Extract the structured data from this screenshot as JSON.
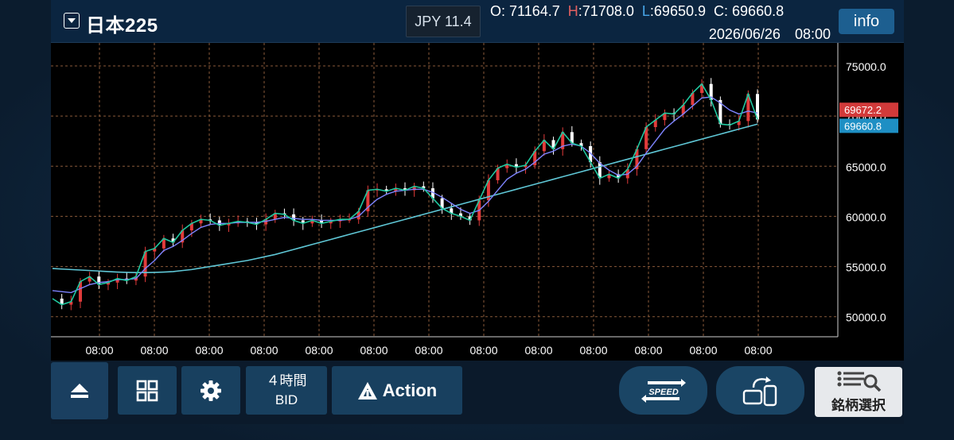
{
  "header": {
    "symbol": "日本225",
    "spread": "JPY 11.4",
    "open_label": "O:",
    "open": "71164.7",
    "high_label": "H:",
    "high": "71708.0",
    "low_label": "L:",
    "low": "69650.9",
    "close_label": "C:",
    "close": "69660.8",
    "datetime": "2026/06/26　08:00",
    "info_label": "info"
  },
  "toolbar": {
    "timeframe": "４時間",
    "price_type": "BID",
    "action_label": "Action",
    "speed_label": "SPEED",
    "search_label": "銘柄選択",
    "icons": [
      "eject-icon",
      "grid-icon",
      "gear-icon",
      "action-icon",
      "speed-icon",
      "rotate-device-icon",
      "list-search-icon"
    ]
  },
  "colors": {
    "up": "#e23b3b",
    "down": "#ffffff",
    "close_line": "#20c8a0",
    "ma_short": "#7e84ff",
    "ma_long": "#5fc7d6",
    "ask_badge": "#d23a3a",
    "bid_badge": "#1e8fc4"
  },
  "chart_data": {
    "type": "candlestick",
    "ylim": [
      48000,
      76500
    ],
    "y_ticks": [
      "75000.0",
      "70000.0",
      "65000.0",
      "60000.0",
      "55000.0",
      "50000.0"
    ],
    "y_tick_values": [
      75000,
      70000,
      65000,
      60000,
      55000,
      50000
    ],
    "x_ticks": [
      "08:00",
      "08:00",
      "08:00",
      "08:00",
      "08:00",
      "08:00",
      "08:00",
      "08:00",
      "08:00",
      "08:00",
      "08:00",
      "08:00",
      "08:00"
    ],
    "price_badges": [
      {
        "label": "69672.2",
        "value": 69672.2,
        "kind": "ask"
      },
      {
        "label": "69660.8",
        "value": 69660.8,
        "kind": "bid"
      }
    ],
    "close_path": [
      51800,
      51200,
      51500,
      53500,
      54000,
      53200,
      53400,
      53800,
      53600,
      54000,
      56500,
      56800,
      57800,
      57400,
      58600,
      59300,
      59700,
      59600,
      59100,
      59300,
      59500,
      59400,
      59200,
      59700,
      60300,
      60200,
      59600,
      59300,
      59600,
      59300,
      59500,
      59700,
      59700,
      60500,
      62600,
      62700,
      62500,
      62800,
      62600,
      63000,
      62800,
      61800,
      60800,
      60300,
      60000,
      59600,
      61600,
      63600,
      64800,
      65200,
      64900,
      65100,
      66500,
      67600,
      66700,
      68400,
      67300,
      67000,
      65400,
      63800,
      64200,
      63800,
      64700,
      66700,
      68900,
      69600,
      70300,
      70200,
      71100,
      72300,
      73200,
      71600,
      69200,
      69100,
      69500,
      72200,
      69660.8
    ],
    "ma_short": [
      52600,
      52500,
      52400,
      52800,
      53200,
      53400,
      53500,
      53700,
      53700,
      53800,
      54800,
      55600,
      56600,
      57000,
      57600,
      58300,
      58900,
      59200,
      59300,
      59300,
      59400,
      59400,
      59400,
      59500,
      59700,
      59900,
      59800,
      59700,
      59700,
      59600,
      59600,
      59600,
      59700,
      60000,
      60900,
      61700,
      62200,
      62500,
      62600,
      62700,
      62700,
      62400,
      61900,
      61300,
      60700,
      60300,
      60600,
      61500,
      62600,
      63700,
      64300,
      64700,
      65400,
      66200,
      66500,
      67000,
      67200,
      67000,
      66300,
      65300,
      64600,
      64100,
      64200,
      65000,
      66300,
      67500,
      68700,
      69500,
      70200,
      71000,
      71800,
      71900,
      71300,
      70600,
      70200,
      70500,
      70300
    ],
    "ma_long": [
      54800,
      54750,
      54700,
      54650,
      54600,
      54550,
      54500,
      54450,
      54420,
      54400,
      54400,
      54420,
      54450,
      54500,
      54600,
      54700,
      54850,
      55000,
      55150,
      55300,
      55450,
      55600,
      55800,
      56000,
      56200,
      56450,
      56700,
      56950,
      57200,
      57450,
      57700,
      57950,
      58200,
      58450,
      58700,
      58950,
      59200,
      59450,
      59700,
      59950,
      60200,
      60450,
      60700,
      60950,
      61200,
      61450,
      61700,
      61950,
      62200,
      62450,
      62700,
      62950,
      63200,
      63450,
      63700,
      63950,
      64200,
      64450,
      64700,
      64950,
      65200,
      65450,
      65700,
      65950,
      66200,
      66450,
      66700,
      66950,
      67200,
      67450,
      67700,
      67950,
      68200,
      68450,
      68700,
      68950,
      69200
    ]
  }
}
